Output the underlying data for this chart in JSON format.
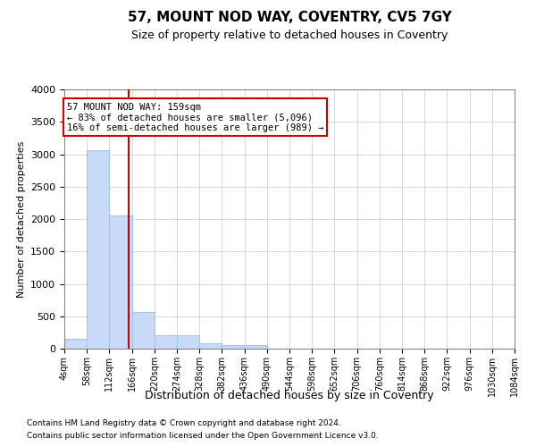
{
  "title": "57, MOUNT NOD WAY, COVENTRY, CV5 7GY",
  "subtitle": "Size of property relative to detached houses in Coventry",
  "xlabel": "Distribution of detached houses by size in Coventry",
  "ylabel": "Number of detached properties",
  "footnote1": "Contains HM Land Registry data © Crown copyright and database right 2024.",
  "footnote2": "Contains public sector information licensed under the Open Government Licence v3.0.",
  "bin_edges": [
    4,
    58,
    112,
    166,
    220,
    274,
    328,
    382,
    436,
    490,
    544,
    598,
    652,
    706,
    760,
    814,
    868,
    922,
    976,
    1030,
    1084
  ],
  "bar_heights": [
    150,
    3060,
    2060,
    560,
    210,
    210,
    80,
    55,
    50,
    0,
    0,
    0,
    0,
    0,
    0,
    0,
    0,
    0,
    0,
    0
  ],
  "bar_color": "#c9daf8",
  "bar_edge_color": "#9fc5e8",
  "property_size": 159,
  "red_line_color": "#cc0000",
  "annotation_line1": "57 MOUNT NOD WAY: 159sqm",
  "annotation_line2": "← 83% of detached houses are smaller (5,096)",
  "annotation_line3": "16% of semi-detached houses are larger (989) →",
  "annotation_box_color": "#ffffff",
  "annotation_box_edgecolor": "#cc0000",
  "ylim": [
    0,
    4000
  ],
  "xlim": [
    4,
    1084
  ],
  "yticks": [
    0,
    500,
    1000,
    1500,
    2000,
    2500,
    3000,
    3500,
    4000
  ],
  "background_color": "#ffffff",
  "grid_color": "#c8c8c8"
}
